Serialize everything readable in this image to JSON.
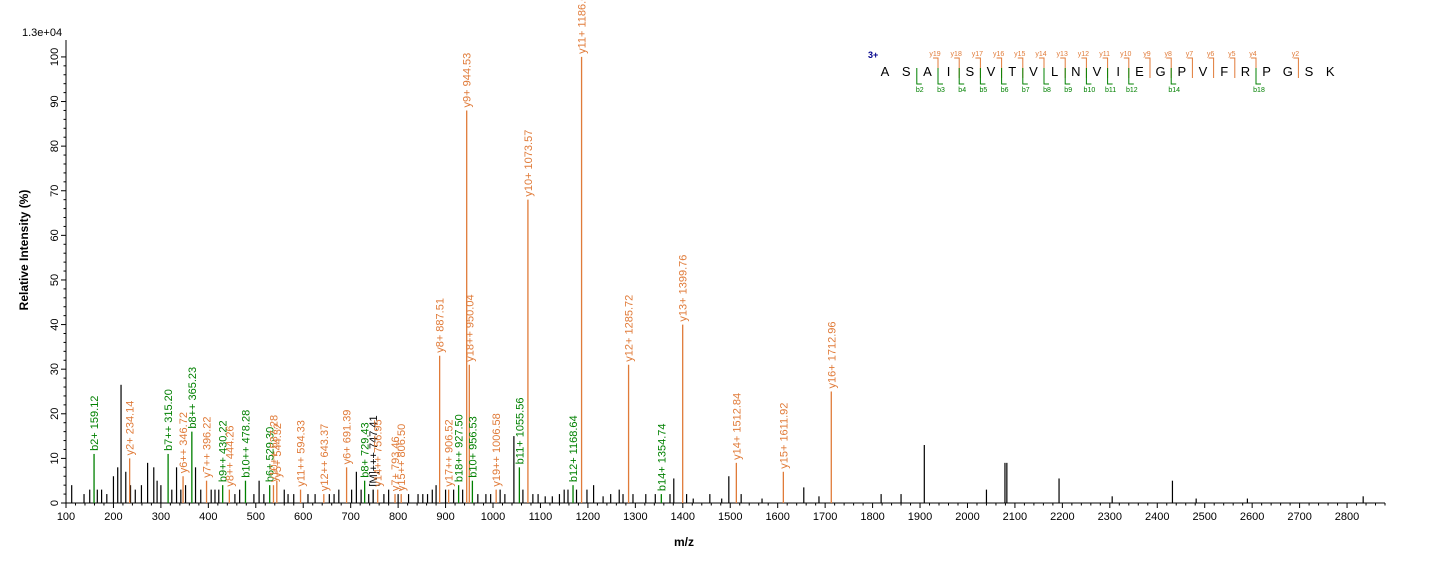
{
  "chart_data": {
    "type": "bar",
    "scale_label": "1.3e+04",
    "xlabel": "m/z",
    "ylabel": "Relative   Intensity (%)",
    "xlim": [
      100,
      2880
    ],
    "ylim": [
      0,
      102
    ],
    "x_ticks": [
      100,
      200,
      300,
      400,
      500,
      600,
      700,
      800,
      900,
      1000,
      1100,
      1200,
      1300,
      1400,
      1500,
      1600,
      1700,
      1800,
      1900,
      2000,
      2100,
      2200,
      2300,
      2400,
      2500,
      2600,
      2700,
      2800
    ],
    "y_ticks": [
      0,
      10,
      20,
      30,
      40,
      50,
      60,
      70,
      80,
      90,
      100
    ],
    "colors": {
      "y_ion": "#e07b39",
      "b_ion": "#008000",
      "other": "#000000",
      "charge": "#00008b"
    },
    "annotated_peaks": [
      {
        "mz": 159.12,
        "intensity": 11,
        "label": "b2+ 159.12",
        "ion": "b"
      },
      {
        "mz": 234.14,
        "intensity": 10,
        "label": "y2+ 234.14",
        "ion": "y"
      },
      {
        "mz": 315.2,
        "intensity": 11,
        "label": "b7++ 315.20",
        "ion": "b"
      },
      {
        "mz": 346.72,
        "intensity": 6,
        "label": "y6++ 346.72",
        "ion": "y"
      },
      {
        "mz": 365.23,
        "intensity": 16,
        "label": "b8++ 365.23",
        "ion": "b"
      },
      {
        "mz": 396.22,
        "intensity": 5,
        "label": "y7++ 396.22",
        "ion": "y"
      },
      {
        "mz": 430.22,
        "intensity": 4,
        "label": "b9++ 430.22",
        "ion": "b"
      },
      {
        "mz": 444.26,
        "intensity": 3,
        "label": "y8++ 444.26",
        "ion": "y"
      },
      {
        "mz": 478.28,
        "intensity": 5,
        "label": "b10++ 478.28",
        "ion": "b"
      },
      {
        "mz": 529.3,
        "intensity": 4,
        "label": "b6+ 529.30",
        "ion": "b"
      },
      {
        "mz": 537.28,
        "intensity": 4,
        "label": "y10++ 537.28",
        "ion": "y"
      },
      {
        "mz": 544.32,
        "intensity": 5,
        "label": "y5+ 544.32",
        "ion": "y"
      },
      {
        "mz": 594.33,
        "intensity": 3,
        "label": "y11++ 594.33",
        "ion": "y"
      },
      {
        "mz": 643.37,
        "intensity": 2,
        "label": "y12++ 643.37",
        "ion": "y"
      },
      {
        "mz": 691.39,
        "intensity": 8,
        "label": "y6+ 691.39",
        "ion": "y"
      },
      {
        "mz": 729.43,
        "intensity": 5,
        "label": "b8+ 729.43",
        "ion": "b"
      },
      {
        "mz": 747.41,
        "intensity": 3,
        "label": "[M]+++ 747.41",
        "ion": "other"
      },
      {
        "mz": 756.95,
        "intensity": 3,
        "label": "y14++ 756.95",
        "ion": "y"
      },
      {
        "mz": 793.46,
        "intensity": 2,
        "label": "y7+ 793.46",
        "ion": "y"
      },
      {
        "mz": 806.5,
        "intensity": 2,
        "label": "y15++ 806.50",
        "ion": "y"
      },
      {
        "mz": 887.51,
        "intensity": 33,
        "label": "y8+ 887.51",
        "ion": "y"
      },
      {
        "mz": 906.52,
        "intensity": 3,
        "label": "y17++ 906.52",
        "ion": "y"
      },
      {
        "mz": 927.5,
        "intensity": 4,
        "label": "b18++ 927.50",
        "ion": "b"
      },
      {
        "mz": 944.53,
        "intensity": 88,
        "label": "y9+ 944.53",
        "ion": "y"
      },
      {
        "mz": 950.04,
        "intensity": 31,
        "label": "y18++ 950.04",
        "ion": "y"
      },
      {
        "mz": 956.53,
        "intensity": 5,
        "label": "b10+ 956.53",
        "ion": "b"
      },
      {
        "mz": 1006.58,
        "intensity": 3,
        "label": "y19++ 1006.58",
        "ion": "y"
      },
      {
        "mz": 1055.56,
        "intensity": 8,
        "label": "b11+ 1055.56",
        "ion": "b"
      },
      {
        "mz": 1073.57,
        "intensity": 68,
        "label": "y10+ 1073.57",
        "ion": "y"
      },
      {
        "mz": 1168.64,
        "intensity": 4,
        "label": "b12+ 1168.64",
        "ion": "b"
      },
      {
        "mz": 1186.66,
        "intensity": 100,
        "label": "y11+ 1186.66",
        "ion": "y"
      },
      {
        "mz": 1285.72,
        "intensity": 31,
        "label": "y12+ 1285.72",
        "ion": "y"
      },
      {
        "mz": 1354.74,
        "intensity": 2,
        "label": "b14+ 1354.74",
        "ion": "b"
      },
      {
        "mz": 1399.76,
        "intensity": 40,
        "label": "y13+ 1399.76",
        "ion": "y"
      },
      {
        "mz": 1512.84,
        "intensity": 9,
        "label": "y14+ 1512.84",
        "ion": "y"
      },
      {
        "mz": 1611.92,
        "intensity": 7,
        "label": "y15+ 1611.92",
        "ion": "y"
      },
      {
        "mz": 1712.96,
        "intensity": 25,
        "label": "y16+ 1712.96",
        "ion": "y"
      }
    ],
    "unlabeled_peaks": [
      [
        112,
        4
      ],
      [
        138,
        2
      ],
      [
        150,
        3
      ],
      [
        166,
        3
      ],
      [
        175,
        3
      ],
      [
        186,
        2
      ],
      [
        200,
        6
      ],
      [
        209,
        8
      ],
      [
        216,
        26.5
      ],
      [
        226,
        7
      ],
      [
        236,
        4
      ],
      [
        246,
        3
      ],
      [
        259,
        4
      ],
      [
        272,
        9
      ],
      [
        285,
        8
      ],
      [
        292,
        5
      ],
      [
        300,
        4
      ],
      [
        323,
        3
      ],
      [
        333,
        8
      ],
      [
        342,
        3
      ],
      [
        352,
        4
      ],
      [
        373,
        8
      ],
      [
        384,
        3
      ],
      [
        406,
        3
      ],
      [
        414,
        3
      ],
      [
        422,
        3
      ],
      [
        456,
        2
      ],
      [
        466,
        3
      ],
      [
        496,
        2
      ],
      [
        507,
        5
      ],
      [
        517,
        2
      ],
      [
        560,
        3
      ],
      [
        568,
        2
      ],
      [
        580,
        2
      ],
      [
        610,
        2
      ],
      [
        625,
        2
      ],
      [
        655,
        2
      ],
      [
        665,
        2
      ],
      [
        675,
        3
      ],
      [
        702,
        3
      ],
      [
        712,
        7
      ],
      [
        722,
        3
      ],
      [
        738,
        2
      ],
      [
        770,
        2
      ],
      [
        780,
        3
      ],
      [
        800,
        2
      ],
      [
        822,
        2
      ],
      [
        842,
        2
      ],
      [
        852,
        2
      ],
      [
        862,
        2
      ],
      [
        872,
        3
      ],
      [
        880,
        4
      ],
      [
        900,
        3
      ],
      [
        917,
        3
      ],
      [
        936,
        3
      ],
      [
        968,
        2
      ],
      [
        985,
        2
      ],
      [
        995,
        2
      ],
      [
        1015,
        3
      ],
      [
        1025,
        2
      ],
      [
        1044,
        15
      ],
      [
        1063,
        3
      ],
      [
        1084,
        2
      ],
      [
        1095,
        2
      ],
      [
        1110,
        1.5
      ],
      [
        1125,
        1.5
      ],
      [
        1140,
        2
      ],
      [
        1150,
        3
      ],
      [
        1158,
        3
      ],
      [
        1176,
        3
      ],
      [
        1198,
        3
      ],
      [
        1212,
        4
      ],
      [
        1232,
        1.5
      ],
      [
        1248,
        2
      ],
      [
        1266,
        3
      ],
      [
        1274,
        2
      ],
      [
        1295,
        2
      ],
      [
        1322,
        2
      ],
      [
        1342,
        2
      ],
      [
        1373,
        2
      ],
      [
        1381,
        5.5
      ],
      [
        1408,
        2
      ],
      [
        1422,
        1
      ],
      [
        1457,
        2
      ],
      [
        1482,
        1
      ],
      [
        1497,
        6
      ],
      [
        1523,
        2
      ],
      [
        1567,
        1
      ],
      [
        1655,
        3.5
      ],
      [
        1687,
        1.5
      ],
      [
        1818,
        2
      ],
      [
        1860,
        2
      ],
      [
        1909,
        13
      ],
      [
        2040,
        3
      ],
      [
        2079,
        9
      ],
      [
        2083,
        9
      ],
      [
        2193,
        5.5
      ],
      [
        2305,
        1.5
      ],
      [
        2432,
        5
      ],
      [
        2482,
        1
      ],
      [
        2590,
        1
      ],
      [
        2834,
        1.5
      ]
    ]
  },
  "sequence": {
    "charge_label": "3+",
    "residues": [
      "A",
      "S",
      "A",
      "I",
      "S",
      "V",
      "T",
      "V",
      "L",
      "N",
      "V",
      "I",
      "E",
      "G",
      "P",
      "V",
      "F",
      "R",
      "P",
      "G",
      "S",
      "K"
    ],
    "y_ions": [
      {
        "after": 2,
        "label": "y19"
      },
      {
        "after": 3,
        "label": "y18"
      },
      {
        "after": 4,
        "label": "y17"
      },
      {
        "after": 5,
        "label": "y16"
      },
      {
        "after": 6,
        "label": "y15"
      },
      {
        "after": 7,
        "label": "y14"
      },
      {
        "after": 8,
        "label": "y13"
      },
      {
        "after": 9,
        "label": "y12"
      },
      {
        "after": 10,
        "label": "y11"
      },
      {
        "after": 11,
        "label": "y10"
      },
      {
        "after": 12,
        "label": "y9"
      },
      {
        "after": 13,
        "label": "y8"
      },
      {
        "after": 14,
        "label": "y7"
      },
      {
        "after": 15,
        "label": "y6"
      },
      {
        "after": 16,
        "label": "y5"
      },
      {
        "after": 17,
        "label": "y4"
      },
      {
        "after": 19,
        "label": "y2"
      }
    ],
    "b_ions": [
      {
        "after": 1,
        "label": "b2"
      },
      {
        "after": 2,
        "label": "b3"
      },
      {
        "after": 3,
        "label": "b4"
      },
      {
        "after": 4,
        "label": "b5"
      },
      {
        "after": 5,
        "label": "b6"
      },
      {
        "after": 6,
        "label": "b7"
      },
      {
        "after": 7,
        "label": "b8"
      },
      {
        "after": 8,
        "label": "b9"
      },
      {
        "after": 9,
        "label": "b10"
      },
      {
        "after": 10,
        "label": "b11"
      },
      {
        "after": 11,
        "label": "b12"
      },
      {
        "after": 13,
        "label": "b14"
      },
      {
        "after": 17,
        "label": "b18"
      }
    ]
  }
}
